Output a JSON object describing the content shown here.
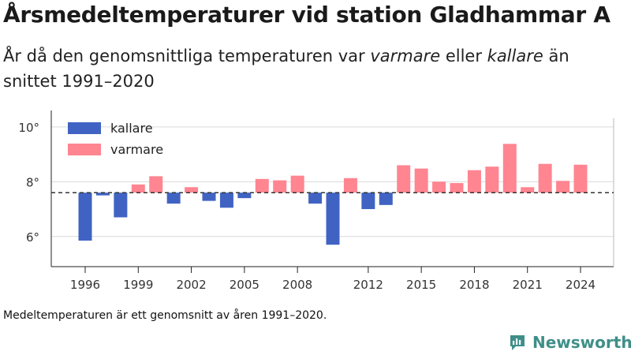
{
  "title": "Årsmedeltemperaturer vid station Gladhammar A",
  "subtitle": {
    "part1": "År då den genomsnittliga temperaturen var ",
    "warm_word": "varmare",
    "part2": " eller ",
    "cold_word": "kallare",
    "part3": " än snittet 1991–2020"
  },
  "footnote": "Medeltemperaturen är ett genomsnitt av åren 1991–2020.",
  "brand": "Newsworthy",
  "colors": {
    "kallare": "#4063c3",
    "varmare": "#ff8591",
    "brand": "#3f8f88"
  },
  "chart_data": {
    "type": "bar",
    "baseline": 7.6,
    "baseline_style": "dashed",
    "ylim": [
      4.9,
      10.6
    ],
    "yticks": [
      6,
      8,
      10
    ],
    "ytick_labels": [
      "6°",
      "8°",
      "10°"
    ],
    "xticks": [
      1996,
      1999,
      2002,
      2005,
      2008,
      2012,
      2015,
      2018,
      2021,
      2024
    ],
    "grid": true,
    "legend": {
      "placement": "top-left",
      "entries": [
        {
          "key": "kallare",
          "label": "kallare"
        },
        {
          "key": "varmare",
          "label": "varmare"
        }
      ]
    },
    "categories": [
      1996,
      1997,
      1998,
      1999,
      2000,
      2001,
      2002,
      2003,
      2004,
      2005,
      2006,
      2007,
      2008,
      2009,
      2010,
      2011,
      2012,
      2013,
      2014,
      2015,
      2016,
      2017,
      2018,
      2019,
      2020,
      2021,
      2022,
      2023,
      2024
    ],
    "values": [
      5.85,
      7.5,
      6.7,
      7.9,
      8.2,
      7.2,
      7.8,
      7.3,
      7.05,
      7.4,
      8.1,
      8.05,
      8.22,
      7.2,
      5.7,
      8.13,
      7.0,
      7.15,
      8.6,
      8.48,
      8.0,
      7.95,
      8.42,
      8.55,
      9.38,
      7.8,
      8.65,
      8.03,
      8.62
    ]
  }
}
